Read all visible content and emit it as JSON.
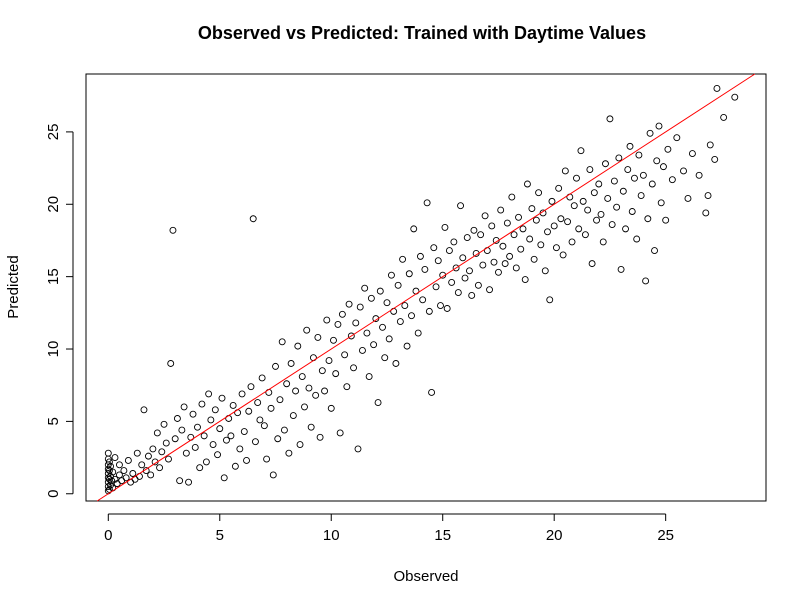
{
  "chart_data": {
    "type": "scatter",
    "title": "Observed vs Predicted: Trained with Daytime Values",
    "xlabel": "Observed",
    "ylabel": "Predicted",
    "xlim": [
      -1.0,
      29.5
    ],
    "ylim": [
      -0.5,
      29.0
    ],
    "xticks": [
      0,
      5,
      10,
      15,
      20,
      25
    ],
    "yticks": [
      0,
      5,
      10,
      15,
      20,
      25
    ],
    "grid": false,
    "legend": "none",
    "point_color": "#000000",
    "reference_line": {
      "type": "y=x",
      "color": "#ff0000"
    },
    "series": [
      {
        "marker": "open-circle",
        "points": [
          [
            0.0,
            0.2
          ],
          [
            0.0,
            0.5
          ],
          [
            0.0,
            0.8
          ],
          [
            0.0,
            1.1
          ],
          [
            0.0,
            1.4
          ],
          [
            0.0,
            1.7
          ],
          [
            0.0,
            2.0
          ],
          [
            0.0,
            2.4
          ],
          [
            0.0,
            2.8
          ],
          [
            0.05,
            0.3
          ],
          [
            0.05,
            1.0
          ],
          [
            0.05,
            1.6
          ],
          [
            0.05,
            2.2
          ],
          [
            0.1,
            0.6
          ],
          [
            0.1,
            1.2
          ],
          [
            0.1,
            1.9
          ],
          [
            0.15,
            0.9
          ],
          [
            0.2,
            1.5
          ],
          [
            0.2,
            0.4
          ],
          [
            0.3,
            1.0
          ],
          [
            0.3,
            2.5
          ],
          [
            0.4,
            0.7
          ],
          [
            0.5,
            1.3
          ],
          [
            0.5,
            2.0
          ],
          [
            0.6,
            0.9
          ],
          [
            0.7,
            1.6
          ],
          [
            0.8,
            1.1
          ],
          [
            0.9,
            2.3
          ],
          [
            1.0,
            0.8
          ],
          [
            1.1,
            1.4
          ],
          [
            1.2,
            1.0
          ],
          [
            1.3,
            2.8
          ],
          [
            1.4,
            1.2
          ],
          [
            1.5,
            2.0
          ],
          [
            1.6,
            5.8
          ],
          [
            1.7,
            1.6
          ],
          [
            1.8,
            2.6
          ],
          [
            1.9,
            1.3
          ],
          [
            2.0,
            3.1
          ],
          [
            2.1,
            2.2
          ],
          [
            2.2,
            4.2
          ],
          [
            2.3,
            1.8
          ],
          [
            2.4,
            2.9
          ],
          [
            2.5,
            4.8
          ],
          [
            2.6,
            3.5
          ],
          [
            2.7,
            2.4
          ],
          [
            2.8,
            9.0
          ],
          [
            2.9,
            18.2
          ],
          [
            3.0,
            3.8
          ],
          [
            3.1,
            5.2
          ],
          [
            3.2,
            0.9
          ],
          [
            3.3,
            4.4
          ],
          [
            3.4,
            6.0
          ],
          [
            3.5,
            2.8
          ],
          [
            3.6,
            0.8
          ],
          [
            3.7,
            3.9
          ],
          [
            3.8,
            5.5
          ],
          [
            3.9,
            3.2
          ],
          [
            4.0,
            4.6
          ],
          [
            4.1,
            1.8
          ],
          [
            4.2,
            6.2
          ],
          [
            4.3,
            4.0
          ],
          [
            4.4,
            2.2
          ],
          [
            4.5,
            6.9
          ],
          [
            4.6,
            5.1
          ],
          [
            4.7,
            3.4
          ],
          [
            4.8,
            5.8
          ],
          [
            4.9,
            2.7
          ],
          [
            5.0,
            4.5
          ],
          [
            5.1,
            6.6
          ],
          [
            5.2,
            1.1
          ],
          [
            5.3,
            3.7
          ],
          [
            5.4,
            5.2
          ],
          [
            5.5,
            4.0
          ],
          [
            5.6,
            6.1
          ],
          [
            5.7,
            1.9
          ],
          [
            5.8,
            5.6
          ],
          [
            5.9,
            3.1
          ],
          [
            6.0,
            6.9
          ],
          [
            6.1,
            4.3
          ],
          [
            6.2,
            2.3
          ],
          [
            6.3,
            5.7
          ],
          [
            6.4,
            7.4
          ],
          [
            6.5,
            19.0
          ],
          [
            6.6,
            3.6
          ],
          [
            6.7,
            6.3
          ],
          [
            6.8,
            5.1
          ],
          [
            6.9,
            8.0
          ],
          [
            7.0,
            4.7
          ],
          [
            7.1,
            2.4
          ],
          [
            7.2,
            7.0
          ],
          [
            7.3,
            5.9
          ],
          [
            7.4,
            1.3
          ],
          [
            7.5,
            8.8
          ],
          [
            7.6,
            3.8
          ],
          [
            7.7,
            6.5
          ],
          [
            7.8,
            10.5
          ],
          [
            7.9,
            4.4
          ],
          [
            8.0,
            7.6
          ],
          [
            8.1,
            2.8
          ],
          [
            8.2,
            9.0
          ],
          [
            8.3,
            5.4
          ],
          [
            8.4,
            7.1
          ],
          [
            8.5,
            10.2
          ],
          [
            8.6,
            3.4
          ],
          [
            8.7,
            8.1
          ],
          [
            8.8,
            6.0
          ],
          [
            8.9,
            11.3
          ],
          [
            9.0,
            7.3
          ],
          [
            9.1,
            4.6
          ],
          [
            9.2,
            9.4
          ],
          [
            9.3,
            6.8
          ],
          [
            9.4,
            10.8
          ],
          [
            9.5,
            3.9
          ],
          [
            9.6,
            8.5
          ],
          [
            9.7,
            7.1
          ],
          [
            9.8,
            12.0
          ],
          [
            9.9,
            9.2
          ],
          [
            10.0,
            5.9
          ],
          [
            10.1,
            10.6
          ],
          [
            10.2,
            8.3
          ],
          [
            10.3,
            11.7
          ],
          [
            10.4,
            4.2
          ],
          [
            10.5,
            12.4
          ],
          [
            10.6,
            9.6
          ],
          [
            10.7,
            7.4
          ],
          [
            10.8,
            13.1
          ],
          [
            10.9,
            10.9
          ],
          [
            11.0,
            8.7
          ],
          [
            11.1,
            11.8
          ],
          [
            11.2,
            3.1
          ],
          [
            11.3,
            12.9
          ],
          [
            11.4,
            9.9
          ],
          [
            11.5,
            14.2
          ],
          [
            11.6,
            11.1
          ],
          [
            11.7,
            8.1
          ],
          [
            11.8,
            13.5
          ],
          [
            11.9,
            10.3
          ],
          [
            12.0,
            12.1
          ],
          [
            12.1,
            6.3
          ],
          [
            12.2,
            14.0
          ],
          [
            12.3,
            11.5
          ],
          [
            12.4,
            9.4
          ],
          [
            12.5,
            13.2
          ],
          [
            12.6,
            10.7
          ],
          [
            12.7,
            15.1
          ],
          [
            12.8,
            12.6
          ],
          [
            12.9,
            9.0
          ],
          [
            13.0,
            14.4
          ],
          [
            13.1,
            11.9
          ],
          [
            13.2,
            16.2
          ],
          [
            13.3,
            13.0
          ],
          [
            13.4,
            10.2
          ],
          [
            13.5,
            15.2
          ],
          [
            13.6,
            12.3
          ],
          [
            13.7,
            18.3
          ],
          [
            13.8,
            14.0
          ],
          [
            13.9,
            11.1
          ],
          [
            14.0,
            16.4
          ],
          [
            14.1,
            13.4
          ],
          [
            14.2,
            15.5
          ],
          [
            14.3,
            20.1
          ],
          [
            14.4,
            12.6
          ],
          [
            14.5,
            7.0
          ],
          [
            14.6,
            17.0
          ],
          [
            14.7,
            14.3
          ],
          [
            14.8,
            16.1
          ],
          [
            14.9,
            13.0
          ],
          [
            15.0,
            15.1
          ],
          [
            15.1,
            18.4
          ],
          [
            15.2,
            12.8
          ],
          [
            15.3,
            16.8
          ],
          [
            15.4,
            14.6
          ],
          [
            15.5,
            17.4
          ],
          [
            15.6,
            15.6
          ],
          [
            15.7,
            13.9
          ],
          [
            15.8,
            19.9
          ],
          [
            15.9,
            16.3
          ],
          [
            16.0,
            14.9
          ],
          [
            16.1,
            17.7
          ],
          [
            16.2,
            15.4
          ],
          [
            16.3,
            13.7
          ],
          [
            16.4,
            18.2
          ],
          [
            16.5,
            16.6
          ],
          [
            16.6,
            14.4
          ],
          [
            16.7,
            17.9
          ],
          [
            16.8,
            15.8
          ],
          [
            16.9,
            19.2
          ],
          [
            17.0,
            16.8
          ],
          [
            17.1,
            14.1
          ],
          [
            17.2,
            18.5
          ],
          [
            17.3,
            16.0
          ],
          [
            17.4,
            17.5
          ],
          [
            17.5,
            15.3
          ],
          [
            17.6,
            19.6
          ],
          [
            17.7,
            17.1
          ],
          [
            17.8,
            15.9
          ],
          [
            17.9,
            18.7
          ],
          [
            18.0,
            16.4
          ],
          [
            18.1,
            20.5
          ],
          [
            18.2,
            17.9
          ],
          [
            18.3,
            15.6
          ],
          [
            18.4,
            19.1
          ],
          [
            18.5,
            16.9
          ],
          [
            18.6,
            18.3
          ],
          [
            18.7,
            14.8
          ],
          [
            18.8,
            21.4
          ],
          [
            18.9,
            17.6
          ],
          [
            19.0,
            19.7
          ],
          [
            19.1,
            16.2
          ],
          [
            19.2,
            18.9
          ],
          [
            19.3,
            20.8
          ],
          [
            19.4,
            17.2
          ],
          [
            19.5,
            19.4
          ],
          [
            19.6,
            15.4
          ],
          [
            19.7,
            18.1
          ],
          [
            19.8,
            13.4
          ],
          [
            19.9,
            20.2
          ],
          [
            20.0,
            18.5
          ],
          [
            20.1,
            17.0
          ],
          [
            20.2,
            21.1
          ],
          [
            20.3,
            19.0
          ],
          [
            20.4,
            16.5
          ],
          [
            20.5,
            22.3
          ],
          [
            20.6,
            18.8
          ],
          [
            20.7,
            20.5
          ],
          [
            20.8,
            17.4
          ],
          [
            20.9,
            19.9
          ],
          [
            21.0,
            21.8
          ],
          [
            21.1,
            18.3
          ],
          [
            21.2,
            23.7
          ],
          [
            21.3,
            20.2
          ],
          [
            21.4,
            17.9
          ],
          [
            21.5,
            19.6
          ],
          [
            21.6,
            22.4
          ],
          [
            21.7,
            15.9
          ],
          [
            21.8,
            20.8
          ],
          [
            21.9,
            18.9
          ],
          [
            22.0,
            21.4
          ],
          [
            22.1,
            19.3
          ],
          [
            22.2,
            17.4
          ],
          [
            22.3,
            22.8
          ],
          [
            22.4,
            20.4
          ],
          [
            22.5,
            25.9
          ],
          [
            22.6,
            18.6
          ],
          [
            22.7,
            21.6
          ],
          [
            22.8,
            19.8
          ],
          [
            22.9,
            23.2
          ],
          [
            23.0,
            15.5
          ],
          [
            23.1,
            20.9
          ],
          [
            23.2,
            18.3
          ],
          [
            23.3,
            22.4
          ],
          [
            23.4,
            24.0
          ],
          [
            23.5,
            19.5
          ],
          [
            23.6,
            21.8
          ],
          [
            23.7,
            17.6
          ],
          [
            23.8,
            23.4
          ],
          [
            23.9,
            20.6
          ],
          [
            24.0,
            22.0
          ],
          [
            24.1,
            14.7
          ],
          [
            24.2,
            19.0
          ],
          [
            24.3,
            24.9
          ],
          [
            24.4,
            21.4
          ],
          [
            24.5,
            16.8
          ],
          [
            24.6,
            23.0
          ],
          [
            24.7,
            25.4
          ],
          [
            24.8,
            20.1
          ],
          [
            24.9,
            22.6
          ],
          [
            25.0,
            18.9
          ],
          [
            25.1,
            23.8
          ],
          [
            25.3,
            21.7
          ],
          [
            25.5,
            24.6
          ],
          [
            25.8,
            22.3
          ],
          [
            26.0,
            20.4
          ],
          [
            26.2,
            23.5
          ],
          [
            26.5,
            22.0
          ],
          [
            26.8,
            19.4
          ],
          [
            26.9,
            20.6
          ],
          [
            27.0,
            24.1
          ],
          [
            27.2,
            23.1
          ],
          [
            27.3,
            28.0
          ],
          [
            27.6,
            26.0
          ],
          [
            28.1,
            27.4
          ]
        ]
      }
    ]
  }
}
